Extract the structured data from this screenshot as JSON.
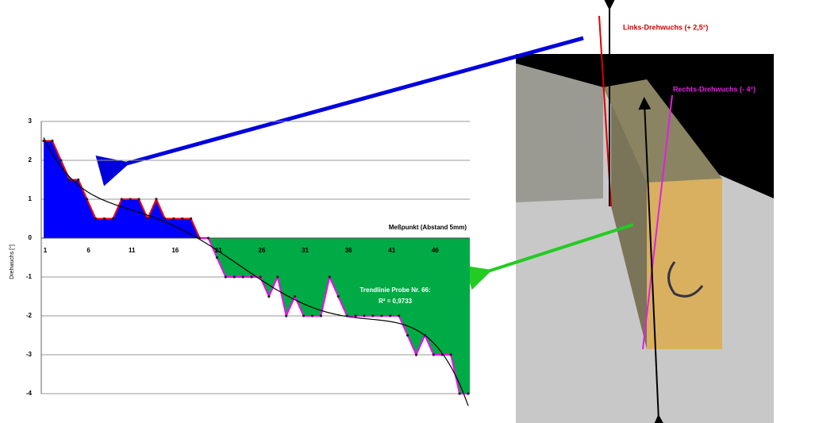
{
  "chart_data": {
    "type": "area-line",
    "y_axis_label": "Drehwuchs [°]",
    "x_axis_label": "Meßpunkt (Abstand 5mm)",
    "trend_label": "Trendlinie Probe Nr. 66:",
    "r_squared_label": "R² = 0,9733",
    "categories": [
      1,
      null,
      null,
      null,
      null,
      6,
      null,
      null,
      null,
      null,
      11,
      null,
      null,
      null,
      null,
      16,
      null,
      null,
      null,
      null,
      21,
      null,
      null,
      null,
      null,
      26,
      null,
      null,
      null,
      null,
      31,
      null,
      null,
      null,
      null,
      36,
      null,
      null,
      null,
      null,
      41,
      null,
      null,
      null,
      null,
      46,
      null,
      null,
      null,
      null
    ],
    "values": [
      2.5,
      2.5,
      2,
      1.5,
      1.5,
      1,
      0.5,
      0.5,
      0.5,
      1,
      1,
      1,
      0.5,
      1,
      0.5,
      0.5,
      0.5,
      0.5,
      0,
      0,
      -0.5,
      -1,
      -1,
      -1,
      -1,
      -1,
      -1.5,
      -1,
      -2,
      -1.5,
      -2,
      -2,
      -2,
      -1,
      -1.5,
      -2,
      -2,
      -2,
      -2,
      -2,
      -2,
      -2,
      -2.5,
      -3,
      -2.5,
      -3,
      -3,
      -3,
      -4,
      -4
    ],
    "positive_color": "#0000ff",
    "negative_color": "#00aa44",
    "positive_line_color": "#ff0000",
    "negative_line_color": "#ff00ff",
    "ylim": [
      -4,
      3
    ],
    "yticks": [
      -4,
      -3,
      -2,
      -1,
      0,
      1,
      2,
      3
    ],
    "grid": true,
    "photo_labels": {
      "left": "Links-Drehwuchs (+ 2,5°)",
      "right": "Rechts-Drehwuchs (- 4°)"
    }
  }
}
